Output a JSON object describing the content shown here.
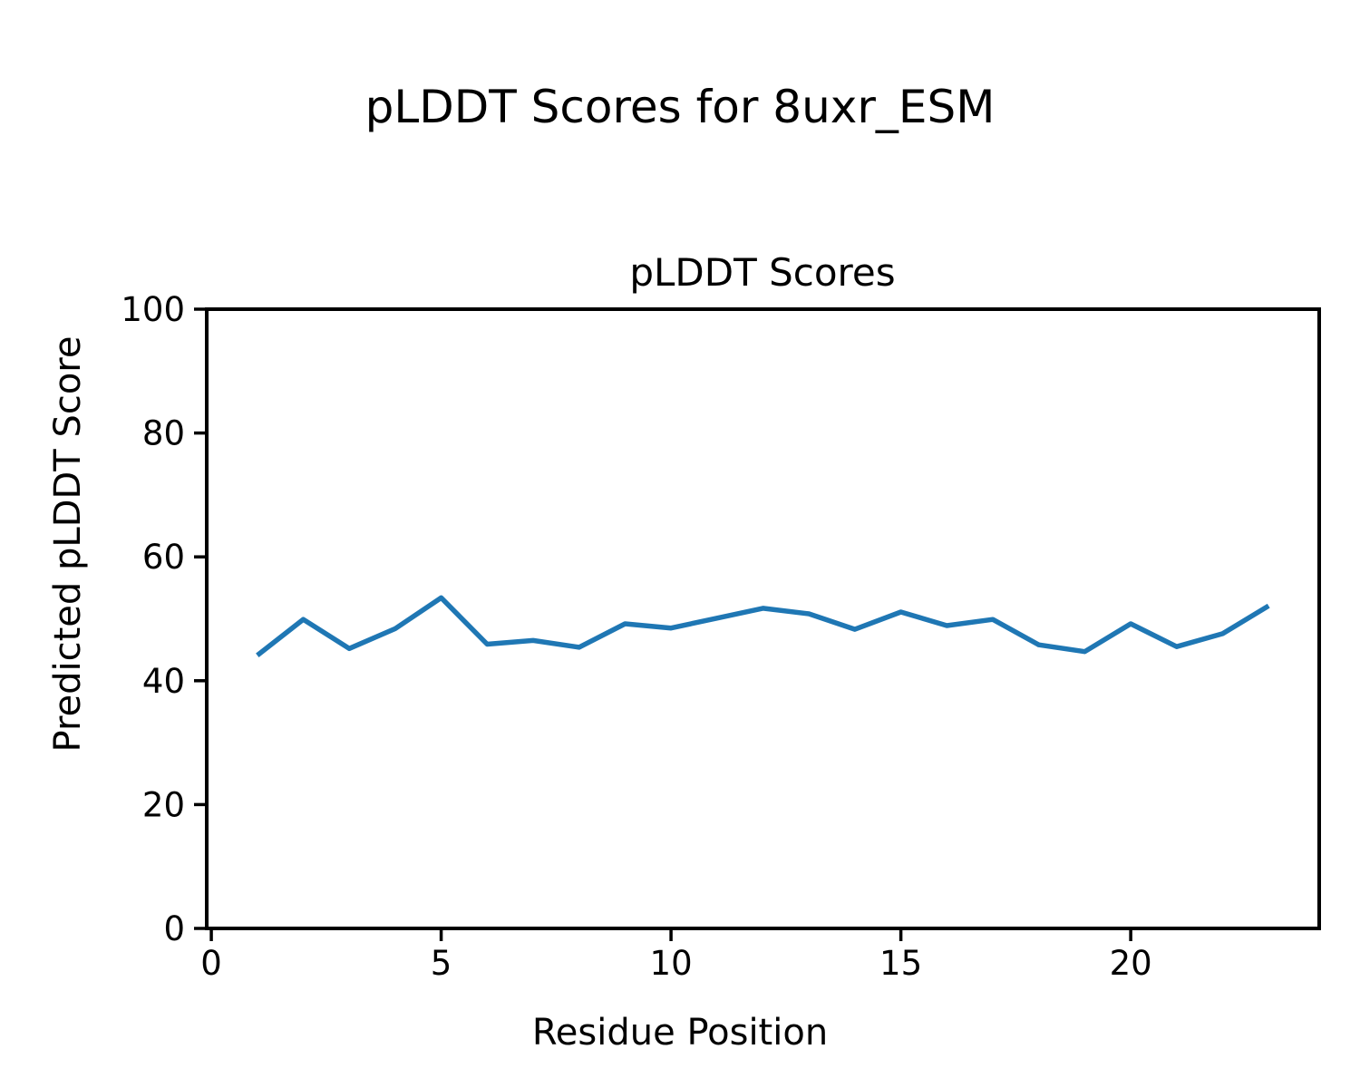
{
  "page": {
    "background_color": "#ffffff",
    "text_color": "#000000"
  },
  "suptitle": "pLDDT Scores for 8uxr_ESM",
  "chart_data": {
    "type": "line",
    "title": "pLDDT Scores",
    "xlabel": "Residue Position",
    "ylabel": "Predicted pLDDT Score",
    "x": [
      1,
      2,
      3,
      4,
      5,
      6,
      7,
      8,
      9,
      10,
      11,
      12,
      13,
      14,
      15,
      16,
      17,
      18,
      19,
      20,
      21,
      22,
      23
    ],
    "series": [
      {
        "name": "pLDDT",
        "color": "#1f77b4",
        "values": [
          44.1,
          49.9,
          45.2,
          48.4,
          53.4,
          45.9,
          46.5,
          45.4,
          49.2,
          48.5,
          50.1,
          51.7,
          50.8,
          48.3,
          51.1,
          48.9,
          49.9,
          45.8,
          44.7,
          49.2,
          45.5,
          47.6,
          52.1
        ]
      }
    ],
    "xlim": [
      -0.1,
      24.1
    ],
    "ylim": [
      0,
      100
    ],
    "xticks": [
      0,
      5,
      10,
      15,
      20
    ],
    "yticks": [
      0,
      20,
      40,
      60,
      80,
      100
    ],
    "grid": false,
    "legend": false
  }
}
